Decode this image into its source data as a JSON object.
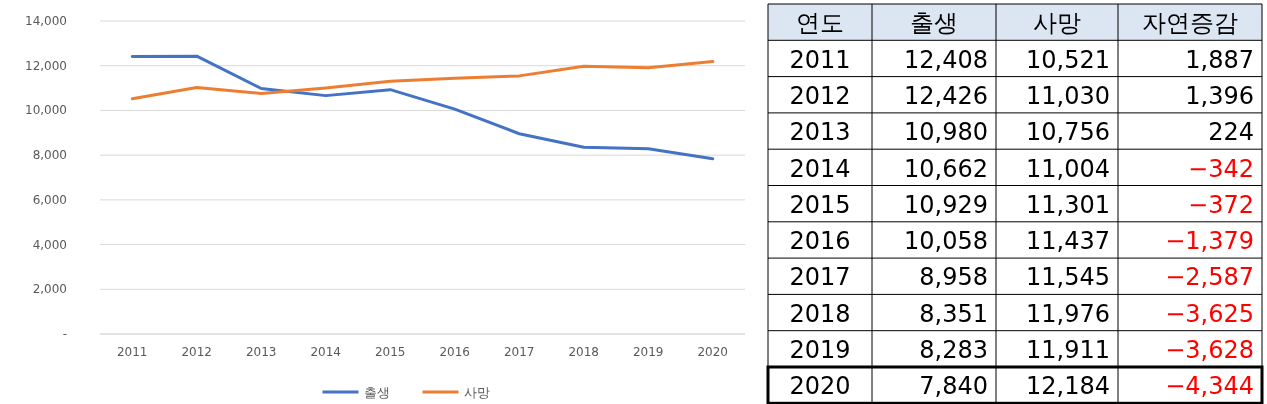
{
  "chart_data": [
    {
      "type": "line",
      "categories": [
        "2011",
        "2012",
        "2013",
        "2014",
        "2015",
        "2016",
        "2017",
        "2018",
        "2019",
        "2020"
      ],
      "series": [
        {
          "name": "출생",
          "color": "#4472c4",
          "values": [
            12408,
            12426,
            10980,
            10662,
            10929,
            10058,
            8958,
            8351,
            8283,
            7840
          ]
        },
        {
          "name": "사망",
          "color": "#ed7d31",
          "values": [
            10521,
            11030,
            10756,
            11004,
            11301,
            11437,
            11545,
            11976,
            11911,
            12184
          ]
        }
      ],
      "ylim": [
        0,
        14000
      ],
      "yticks": [
        {
          "value": 0,
          "label": "-"
        },
        {
          "value": 2000,
          "label": "2,000"
        },
        {
          "value": 4000,
          "label": "4,000"
        },
        {
          "value": 6000,
          "label": "6,000"
        },
        {
          "value": 8000,
          "label": "8,000"
        },
        {
          "value": 10000,
          "label": "10,000"
        },
        {
          "value": 12000,
          "label": "12,000"
        },
        {
          "value": 14000,
          "label": "14,000"
        }
      ],
      "grid": "y",
      "legend": "bottom"
    },
    {
      "type": "heatmap",
      "ylabel": "연도",
      "categories": [
        "출생",
        "사망",
        "자연증감"
      ],
      "y_categories": [
        "2011",
        "2012",
        "2013",
        "2014",
        "2015",
        "2016",
        "2017",
        "2018",
        "2019",
        "2020"
      ],
      "cells": [
        [
          12408,
          10521,
          1887
        ],
        [
          12426,
          11030,
          1396
        ],
        [
          10980,
          10756,
          224
        ],
        [
          10662,
          11004,
          -342
        ],
        [
          10929,
          11301,
          -372
        ],
        [
          10058,
          11437,
          -1379
        ],
        [
          8958,
          11545,
          -2587
        ],
        [
          8351,
          11976,
          -3625
        ],
        [
          8283,
          11911,
          -3628
        ],
        [
          7840,
          12184,
          -4344
        ]
      ],
      "cell_labels": [
        [
          "12,408",
          "10,521",
          "1,887"
        ],
        [
          "12,426",
          "11,030",
          "1,396"
        ],
        [
          "10,980",
          "10,756",
          "224"
        ],
        [
          "10,662",
          "11,004",
          "−342"
        ],
        [
          "10,929",
          "11,301",
          "−372"
        ],
        [
          "10,058",
          "11,437",
          "−1,379"
        ],
        [
          "8,958",
          "11,545",
          "−2,587"
        ],
        [
          "8,351",
          "11,976",
          "−3,625"
        ],
        [
          "8,283",
          "11,911",
          "−3,628"
        ],
        [
          "7,840",
          "12,184",
          "−4,344"
        ]
      ]
    }
  ]
}
